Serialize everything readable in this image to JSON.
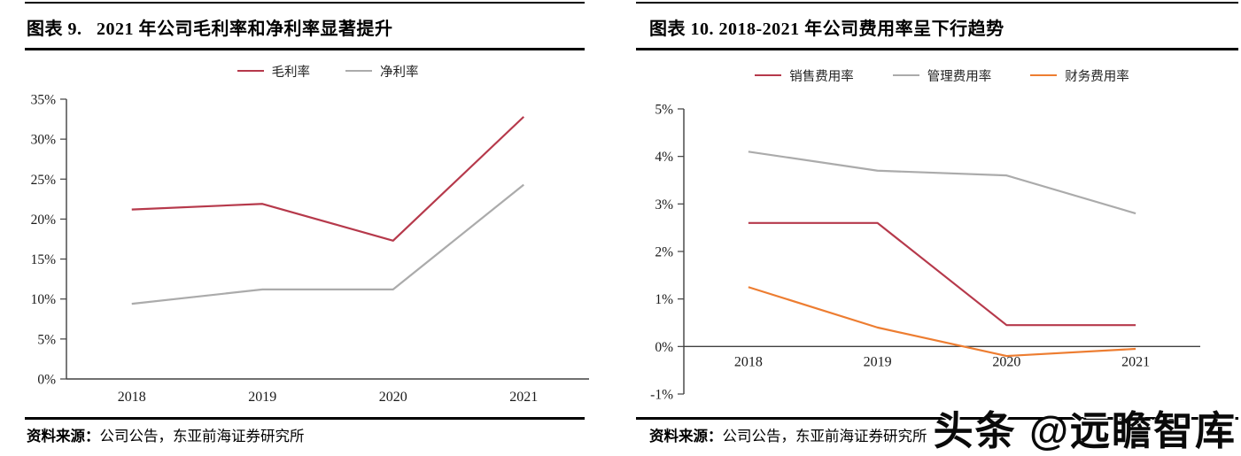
{
  "watermark": "头条 @远瞻智库",
  "figures": [
    {
      "title": "图表 9.   2021 年公司毛利率和净利率显著提升",
      "source_label": "资料来源：",
      "source_text": "公司公告，东亚前海证券研究所"
    },
    {
      "title": "图表 10. 2018-2021 年公司费用率呈下行趋势",
      "source_label": "资料来源：",
      "source_text": "公司公告，东亚前海证券研究所"
    }
  ],
  "chart_data": [
    {
      "type": "line",
      "title": "2021 年公司毛利率和净利率显著提升",
      "categories": [
        "2018",
        "2019",
        "2020",
        "2021"
      ],
      "series": [
        {
          "name": "毛利率",
          "color": "#b6394b",
          "values": [
            21.2,
            21.9,
            17.3,
            32.8
          ]
        },
        {
          "name": "净利率",
          "color": "#ababab",
          "values": [
            9.4,
            11.2,
            11.2,
            24.3
          ]
        }
      ],
      "ylim": [
        0,
        35
      ],
      "ytick_step": 5,
      "ytick_format": "percent",
      "legend_position": "top",
      "grid": false,
      "axis_color": "#404040"
    },
    {
      "type": "line",
      "title": "2018-2021 年公司费用率呈下行趋势",
      "categories": [
        "2018",
        "2019",
        "2020",
        "2021"
      ],
      "series": [
        {
          "name": "销售费用率",
          "color": "#b6394b",
          "values": [
            2.6,
            2.6,
            0.45,
            0.45
          ]
        },
        {
          "name": "管理费用率",
          "color": "#ababab",
          "values": [
            4.1,
            3.7,
            3.6,
            2.8
          ]
        },
        {
          "name": "财务费用率",
          "color": "#ed7d31",
          "values": [
            1.25,
            0.4,
            -0.2,
            -0.05
          ]
        }
      ],
      "ylim": [
        -1,
        5
      ],
      "ytick_step": 1,
      "ytick_format": "percent",
      "legend_position": "top",
      "grid": false,
      "axis_color": "#404040"
    }
  ]
}
